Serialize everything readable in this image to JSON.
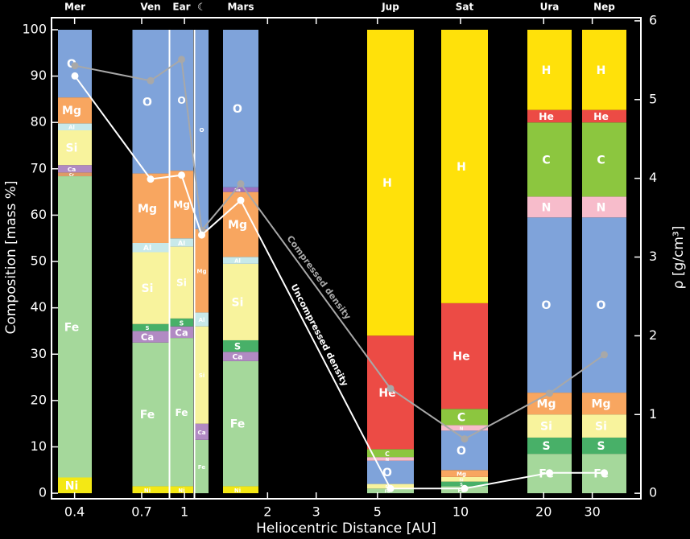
{
  "chart_data": {
    "type": "stacked-bar-line",
    "xlabel": "Heliocentric Distance [AU]",
    "ylabel": "Composition [mass %]",
    "y2label": "ρ [g/cm³]",
    "xscale": "log",
    "xlim": [
      0.33,
      45
    ],
    "xticks": [
      0.4,
      0.7,
      1,
      2,
      3,
      5,
      10,
      20,
      30
    ],
    "ylim": [
      -1.2,
      102.6
    ],
    "yticks": [
      0,
      10,
      20,
      30,
      40,
      50,
      60,
      70,
      80,
      90,
      100
    ],
    "y2lim": [
      -0.07,
      6.04
    ],
    "y2ticks": [
      0,
      1,
      2,
      3,
      4,
      5,
      6
    ],
    "categories": [
      "Mer",
      "Ven",
      "Ear",
      "☾",
      "Mars",
      "Jup",
      "Sat",
      "Ura",
      "Nep"
    ],
    "element_colors": {
      "H": "#ffe10a",
      "He": "#ec4b45",
      "C": "#8cc63f",
      "N": "#f7bccb",
      "O": "#7fa3da",
      "Mg": "#f8a660",
      "Si": "#f8f39d",
      "Al": "#c8e9ea",
      "S": "#48b068",
      "Ca": "#b18ac3",
      "Fe": "#a5d89b",
      "Ni": "#f4e814",
      "Cr": "#dd9a66",
      "Na": "#9d72c2"
    },
    "bars": [
      {
        "segments": [
          {
            "element": "Ni",
            "value": 3.4
          },
          {
            "element": "Fe",
            "value": 65
          },
          {
            "element": "Cr",
            "value": 0.8
          },
          {
            "element": "Ca",
            "value": 1.6
          },
          {
            "element": "Si",
            "value": 7.5
          },
          {
            "element": "Al",
            "value": 1.5
          },
          {
            "element": "Mg",
            "value": 5.6
          },
          {
            "element": "O",
            "value": 14.6
          }
        ]
      },
      {
        "segments": [
          {
            "element": "Ni",
            "value": 1.5
          },
          {
            "element": "Fe",
            "value": 31
          },
          {
            "element": "Ca",
            "value": 2.5
          },
          {
            "element": "S",
            "value": 1.5
          },
          {
            "element": "Si",
            "value": 15.5
          },
          {
            "element": "Al",
            "value": 2
          },
          {
            "element": "Mg",
            "value": 15
          },
          {
            "element": "O",
            "value": 31
          }
        ]
      },
      {
        "segments": [
          {
            "element": "Ni",
            "value": 1.5
          },
          {
            "element": "Fe",
            "value": 32
          },
          {
            "element": "Ca",
            "value": 2.5
          },
          {
            "element": "S",
            "value": 1.7
          },
          {
            "element": "Si",
            "value": 15.5
          },
          {
            "element": "Al",
            "value": 1.8
          },
          {
            "element": "Mg",
            "value": 14.6
          },
          {
            "element": "O",
            "value": 30.4
          }
        ]
      },
      {
        "segments": [
          {
            "element": "Fe",
            "value": 11.5
          },
          {
            "element": "Ca",
            "value": 3.5
          },
          {
            "element": "Si",
            "value": 21
          },
          {
            "element": "Al",
            "value": 3
          },
          {
            "element": "Mg",
            "value": 18
          },
          {
            "element": "O",
            "value": 43
          }
        ]
      },
      {
        "segments": [
          {
            "element": "Ni",
            "value": 1.5
          },
          {
            "element": "Fe",
            "value": 27
          },
          {
            "element": "Ca",
            "value": 2
          },
          {
            "element": "S",
            "value": 2.5
          },
          {
            "element": "Si",
            "value": 16.5
          },
          {
            "element": "Al",
            "value": 1.5
          },
          {
            "element": "Mg",
            "value": 14
          },
          {
            "element": "Na",
            "value": 1
          },
          {
            "element": "O",
            "value": 34
          }
        ]
      },
      {
        "segments": [
          {
            "element": "Fe",
            "value": 1
          },
          {
            "element": "Si",
            "value": 1
          },
          {
            "element": "O",
            "value": 5
          },
          {
            "element": "N",
            "value": 0.8
          },
          {
            "element": "C",
            "value": 1.7
          },
          {
            "element": "He",
            "value": 24.5
          },
          {
            "element": "H",
            "value": 66
          }
        ]
      },
      {
        "segments": [
          {
            "element": "Fe",
            "value": 1.5
          },
          {
            "element": "S",
            "value": 1
          },
          {
            "element": "Si",
            "value": 1
          },
          {
            "element": "Mg",
            "value": 1.5
          },
          {
            "element": "O",
            "value": 8.5
          },
          {
            "element": "N",
            "value": 1.2
          },
          {
            "element": "C",
            "value": 3.5
          },
          {
            "element": "He",
            "value": 22.8
          },
          {
            "element": "H",
            "value": 59
          }
        ]
      },
      {
        "segments": [
          {
            "element": "Fe",
            "value": 8.5
          },
          {
            "element": "S",
            "value": 3.5
          },
          {
            "element": "Si",
            "value": 5
          },
          {
            "element": "Mg",
            "value": 4.7
          },
          {
            "element": "O",
            "value": 37.8
          },
          {
            "element": "N",
            "value": 4.5
          },
          {
            "element": "C",
            "value": 16
          },
          {
            "element": "He",
            "value": 2.7
          },
          {
            "element": "H",
            "value": 17.3
          }
        ]
      },
      {
        "segments": [
          {
            "element": "Fe",
            "value": 8.5
          },
          {
            "element": "S",
            "value": 3.5
          },
          {
            "element": "Si",
            "value": 5
          },
          {
            "element": "Mg",
            "value": 4.7
          },
          {
            "element": "O",
            "value": 37.8
          },
          {
            "element": "N",
            "value": 4.5
          },
          {
            "element": "C",
            "value": 16
          },
          {
            "element": "He",
            "value": 2.7
          },
          {
            "element": "H",
            "value": 17.3
          }
        ]
      }
    ],
    "series": [
      {
        "name": "Compressed density",
        "color": "#a8a8a8",
        "axis": "y2",
        "values": [
          5.43,
          5.24,
          5.51,
          3.34,
          3.93,
          1.33,
          0.69,
          1.27,
          1.76
        ]
      },
      {
        "name": "Uncompressed density",
        "color": "#ffffff",
        "axis": "y2",
        "values": [
          5.3,
          3.99,
          4.04,
          3.28,
          3.72,
          0.06,
          0.06,
          0.26,
          0.26
        ]
      }
    ]
  }
}
